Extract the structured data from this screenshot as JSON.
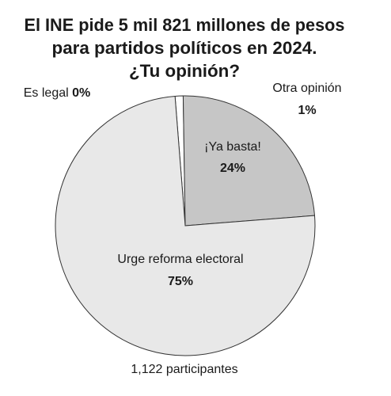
{
  "chart_data": {
    "type": "pie",
    "title": [
      "El INE pide 5 mil 821 millones de pesos",
      "para partidos políticos en 2024.",
      "¿Tu opinión?"
    ],
    "categories": [
      "Es legal",
      "Otra opinión",
      "¡Ya basta!",
      "Urge reforma electoral"
    ],
    "values": [
      0,
      1,
      24,
      75
    ],
    "value_labels": [
      "0%",
      "1%",
      "24%",
      "75%"
    ],
    "colors": [
      "#ffffff",
      "#ffffff",
      "#c6c6c6",
      "#e8e8e8"
    ],
    "footer": "1,122 participantes"
  }
}
